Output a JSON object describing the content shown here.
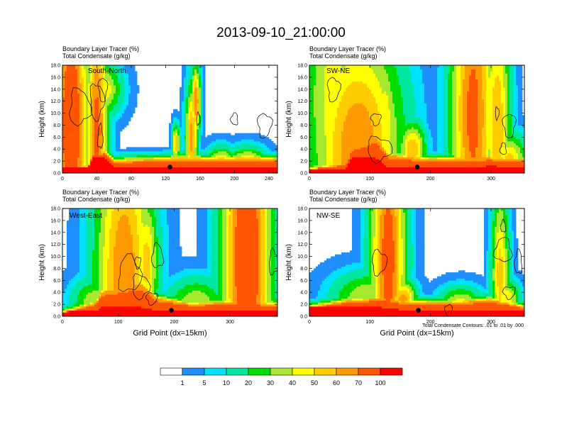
{
  "figure": {
    "title": "2013-09-10_21:00:00",
    "contour_note": "Total Condensate Contours: .01 to .01 by .000"
  },
  "chart_data": [
    {
      "type": "heatmap",
      "panel": "South-North",
      "header": [
        "Boundary Layer Tracer   (%)",
        "Total Condensate   (g/kg)"
      ],
      "ylabel": "Height (km)",
      "xlabel": "",
      "xlim": [
        0,
        250
      ],
      "ylim": [
        0,
        18
      ],
      "xticks": [
        0,
        40,
        80,
        120,
        160,
        200,
        240
      ],
      "yticks": [
        0,
        2,
        4,
        6,
        8,
        10,
        12,
        14,
        16,
        18
      ],
      "marker": {
        "x": 125,
        "y": 1.0
      },
      "surface_layer": [
        [
          0,
          1.0,
          0.9
        ],
        [
          30,
          1.0,
          1.1
        ],
        [
          35,
          2.5,
          3.0
        ],
        [
          50,
          2.5,
          3.5
        ],
        [
          60,
          1.0,
          2.0
        ],
        [
          100,
          1.0,
          2.2
        ],
        [
          140,
          1.0,
          2.5
        ],
        [
          180,
          1.0,
          2.3
        ],
        [
          220,
          1.0,
          2.5
        ],
        [
          250,
          1.0,
          2.2
        ]
      ],
      "plumes": [
        [
          2,
          3,
          14,
          20,
          48
        ],
        [
          10,
          8,
          14,
          18,
          88
        ],
        [
          40,
          7,
          9,
          16,
          75
        ],
        [
          46,
          14,
          15,
          3,
          50
        ],
        [
          44,
          4,
          5,
          2,
          55
        ],
        [
          42,
          1,
          1,
          2,
          82
        ],
        [
          132,
          5,
          3,
          2,
          60
        ],
        [
          155,
          12,
          4,
          4,
          70
        ],
        [
          150,
          6,
          5,
          6,
          65
        ],
        [
          185,
          1,
          12,
          2,
          70
        ],
        [
          215,
          1,
          15,
          2,
          70
        ]
      ],
      "contours": [
        [
          20,
          11,
          12,
          3
        ],
        [
          40,
          12,
          8,
          3
        ],
        [
          47,
          14,
          5,
          2
        ],
        [
          44,
          6,
          3,
          2
        ],
        [
          200,
          9,
          4,
          1
        ],
        [
          235,
          8,
          8,
          2
        ],
        [
          158,
          9,
          2,
          1
        ],
        [
          280,
          7,
          8,
          1
        ]
      ]
    },
    {
      "type": "heatmap",
      "panel": "SW-NE",
      "header": [
        "Boundary Layer Tracer   (%)",
        "Total Condensate   (g/kg)"
      ],
      "ylabel": "Height (km)",
      "xlabel": "",
      "xlim": [
        0,
        355
      ],
      "ylim": [
        0,
        18
      ],
      "xticks": [
        0,
        100,
        200,
        300
      ],
      "yticks": [
        0,
        2,
        4,
        6,
        8,
        10,
        12,
        14,
        16,
        18
      ],
      "marker": {
        "x": 178,
        "y": 1.0
      },
      "surface_layer": [
        [
          0,
          0.8,
          0.6
        ],
        [
          60,
          0.8,
          1.5
        ],
        [
          70,
          2.5,
          4.0
        ],
        [
          110,
          2.5,
          6.0
        ],
        [
          130,
          1.0,
          3.0
        ],
        [
          200,
          1.0,
          2.2
        ],
        [
          260,
          1.0,
          2.5
        ],
        [
          300,
          1.2,
          2.5
        ],
        [
          355,
          1.0,
          2.2
        ]
      ],
      "plumes": [
        [
          40,
          12,
          35,
          20,
          45
        ],
        [
          80,
          4,
          50,
          14,
          70
        ],
        [
          85,
          12,
          20,
          3,
          50
        ],
        [
          125,
          7,
          12,
          10,
          50
        ],
        [
          170,
          4,
          15,
          3,
          60
        ],
        [
          270,
          10,
          25,
          20,
          75
        ],
        [
          265,
          6,
          20,
          4,
          65
        ],
        [
          310,
          8,
          15,
          14,
          60
        ],
        [
          330,
          2,
          20,
          3,
          55
        ],
        [
          90,
          1,
          30,
          4,
          85
        ]
      ],
      "contours": [
        [
          110,
          9,
          8,
          1
        ],
        [
          115,
          4,
          20,
          2
        ],
        [
          330,
          8,
          10,
          2
        ],
        [
          320,
          4,
          5,
          1
        ],
        [
          40,
          14,
          10,
          2
        ],
        [
          310,
          10,
          3,
          1
        ]
      ]
    },
    {
      "type": "heatmap",
      "panel": "West-East",
      "header": [
        "Boundary Layer Tracer   (%)",
        "Total Condensate   (g/kg)"
      ],
      "ylabel": "Height (km)",
      "xlabel": "Grid Point (dx=15km)",
      "xlim": [
        0,
        385
      ],
      "ylim": [
        0,
        18
      ],
      "xticks": [
        0,
        100,
        200,
        300
      ],
      "yticks": [
        0,
        2,
        4,
        6,
        8,
        10,
        12,
        14,
        16,
        18
      ],
      "marker": {
        "x": 195,
        "y": 1.0
      },
      "surface_layer": [
        [
          0,
          0.8,
          0.6
        ],
        [
          60,
          1.0,
          2.2
        ],
        [
          70,
          1.5,
          4.0
        ],
        [
          140,
          1.5,
          5.5
        ],
        [
          170,
          1.0,
          3.0
        ],
        [
          230,
          1.0,
          2.0
        ],
        [
          300,
          1.0,
          2.3
        ],
        [
          385,
          1.0,
          2.0
        ]
      ],
      "plumes": [
        [
          330,
          10,
          30,
          25,
          88
        ],
        [
          340,
          13,
          15,
          14,
          65
        ],
        [
          110,
          6,
          35,
          20,
          70
        ],
        [
          125,
          8,
          20,
          10,
          60
        ],
        [
          150,
          9,
          15,
          8,
          55
        ],
        [
          60,
          2,
          30,
          3,
          40
        ],
        [
          100,
          2,
          20,
          2,
          80
        ],
        [
          240,
          2,
          35,
          3,
          40
        ],
        [
          370,
          1,
          15,
          2,
          45
        ]
      ],
      "contours": [
        [
          120,
          7,
          20,
          3
        ],
        [
          170,
          10,
          10,
          2
        ],
        [
          140,
          5,
          15,
          2
        ],
        [
          135,
          9,
          5,
          1
        ],
        [
          378,
          9,
          8,
          2
        ],
        [
          160,
          3,
          10,
          1
        ]
      ]
    },
    {
      "type": "heatmap",
      "panel": "NW-SE",
      "header": [
        "Boundary Layer Tracer   (%)",
        "Total Condensate   (g/kg)"
      ],
      "ylabel": "Height (km)",
      "xlabel": "Grid Point (dx=15km)",
      "xlim": [
        0,
        355
      ],
      "ylim": [
        0,
        18
      ],
      "xticks": [
        0,
        100,
        200,
        300
      ],
      "yticks": [
        0,
        2,
        4,
        6,
        8,
        10,
        12,
        14,
        16,
        18
      ],
      "marker": {
        "x": 180,
        "y": 1.0
      },
      "surface_layer": [
        [
          0,
          1.5,
          1.5
        ],
        [
          60,
          1.5,
          2.5
        ],
        [
          120,
          1.5,
          3.0
        ],
        [
          160,
          1.0,
          2.3
        ],
        [
          230,
          1.0,
          2.2
        ],
        [
          300,
          1.0,
          2.8
        ],
        [
          355,
          1.0,
          1.5
        ]
      ],
      "plumes": [
        [
          130,
          10,
          20,
          18,
          78
        ],
        [
          125,
          6,
          10,
          8,
          70
        ],
        [
          95,
          3,
          40,
          3,
          40
        ],
        [
          155,
          3,
          15,
          2,
          65
        ],
        [
          315,
          7,
          10,
          10,
          55
        ],
        [
          325,
          3,
          15,
          2,
          50
        ],
        [
          250,
          2,
          25,
          2,
          45
        ]
      ],
      "contours": [
        [
          115,
          9,
          12,
          2
        ],
        [
          320,
          11,
          14,
          2
        ],
        [
          345,
          9,
          6,
          2
        ],
        [
          330,
          4,
          10,
          1
        ],
        [
          230,
          1,
          6,
          1
        ],
        [
          320,
          15,
          4,
          1
        ]
      ]
    }
  ],
  "legend": {
    "levels": [
      "1",
      "5",
      "10",
      "20",
      "30",
      "40",
      "50",
      "60",
      "70",
      "100"
    ],
    "colors": [
      "#ffffff",
      "#1f8fff",
      "#00e0ff",
      "#00e8a0",
      "#00dd00",
      "#a6e830",
      "#ffff00",
      "#ffcc00",
      "#ff9900",
      "#ff5500",
      "#ff0000"
    ]
  }
}
